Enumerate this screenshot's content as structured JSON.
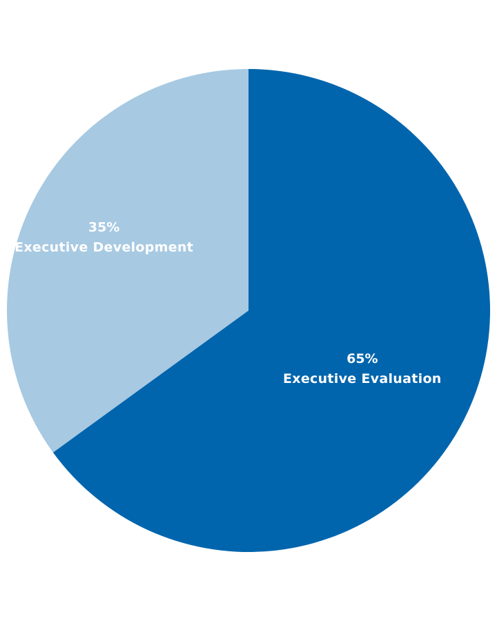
{
  "chart_data": {
    "type": "pie",
    "title": "",
    "slices": [
      {
        "label": "Executive Evaluation",
        "value": 65,
        "display_value": "65%",
        "color": "#0065ad"
      },
      {
        "label": "Executive Development",
        "value": 35,
        "display_value": "35%",
        "color": "#a7c9e2"
      }
    ],
    "start_angle_deg": 0,
    "direction": "clockwise",
    "legend": "none",
    "labels": "inside"
  }
}
